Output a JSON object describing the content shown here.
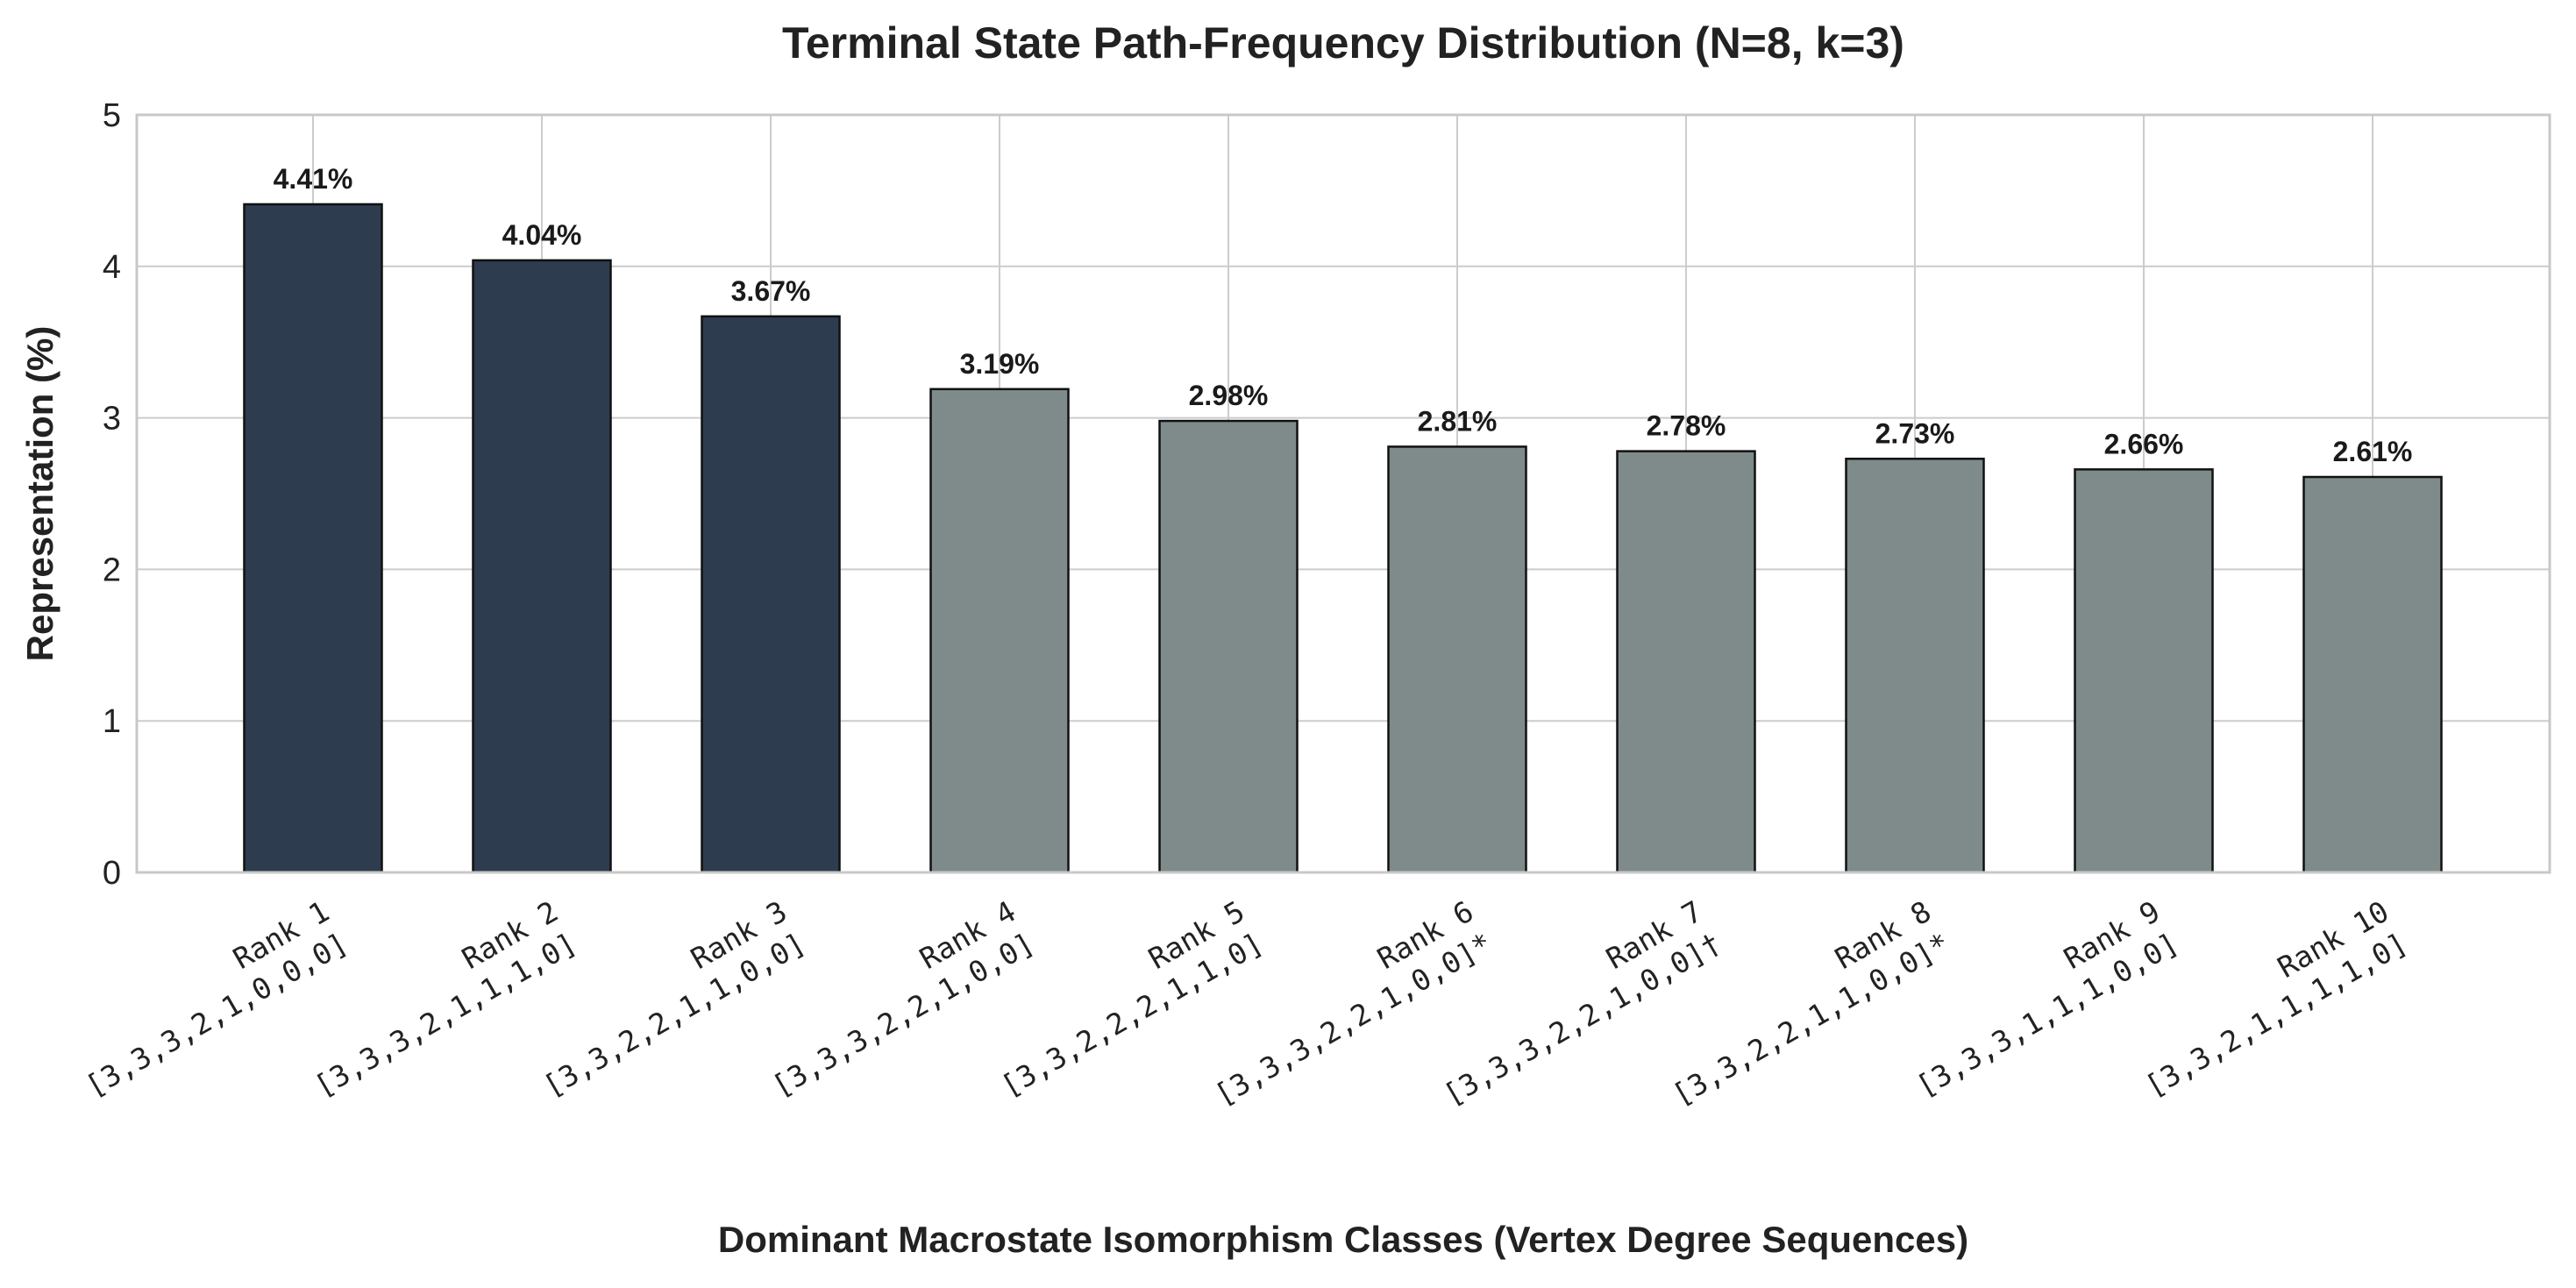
{
  "chart_data": {
    "type": "bar",
    "title": "Terminal State Path-Frequency Distribution (N=8, k=3)",
    "xlabel": "Dominant Macrostate Isomorphism Classes (Vertex Degree Sequences)",
    "ylabel": "Representation (%)",
    "ylim": [
      0,
      5
    ],
    "yticks": [
      "0",
      "1",
      "2",
      "3",
      "4",
      "5"
    ],
    "grid": true,
    "categories": [
      {
        "rank": "Rank 1",
        "sequence": "[3,3,3,2,1,0,0,0]"
      },
      {
        "rank": "Rank 2",
        "sequence": "[3,3,3,2,1,1,1,0]"
      },
      {
        "rank": "Rank 3",
        "sequence": "[3,3,2,2,1,1,0,0]"
      },
      {
        "rank": "Rank 4",
        "sequence": "[3,3,3,2,2,1,0,0]"
      },
      {
        "rank": "Rank 5",
        "sequence": "[3,3,2,2,2,1,1,0]"
      },
      {
        "rank": "Rank 6",
        "sequence": "[3,3,3,2,2,1,0,0]*"
      },
      {
        "rank": "Rank 7",
        "sequence": "[3,3,3,2,2,1,0,0]†"
      },
      {
        "rank": "Rank 8",
        "sequence": "[3,3,2,2,1,1,0,0]*"
      },
      {
        "rank": "Rank 9",
        "sequence": "[3,3,3,1,1,1,0,0]"
      },
      {
        "rank": "Rank 10",
        "sequence": "[3,3,2,1,1,1,1,0]"
      }
    ],
    "values": [
      4.41,
      4.04,
      3.67,
      3.19,
      2.98,
      2.81,
      2.78,
      2.73,
      2.66,
      2.61
    ],
    "data_labels": [
      "4.41%",
      "4.04%",
      "3.67%",
      "3.19%",
      "2.98%",
      "2.81%",
      "2.78%",
      "2.73%",
      "2.66%",
      "2.61%"
    ],
    "highlight_count": 3,
    "colors": {
      "highlight": "#2d3c4e",
      "default": "#7f8b8b",
      "edge": "#111111",
      "grid": "#cccccc",
      "spine": "#c8c8c8"
    }
  }
}
